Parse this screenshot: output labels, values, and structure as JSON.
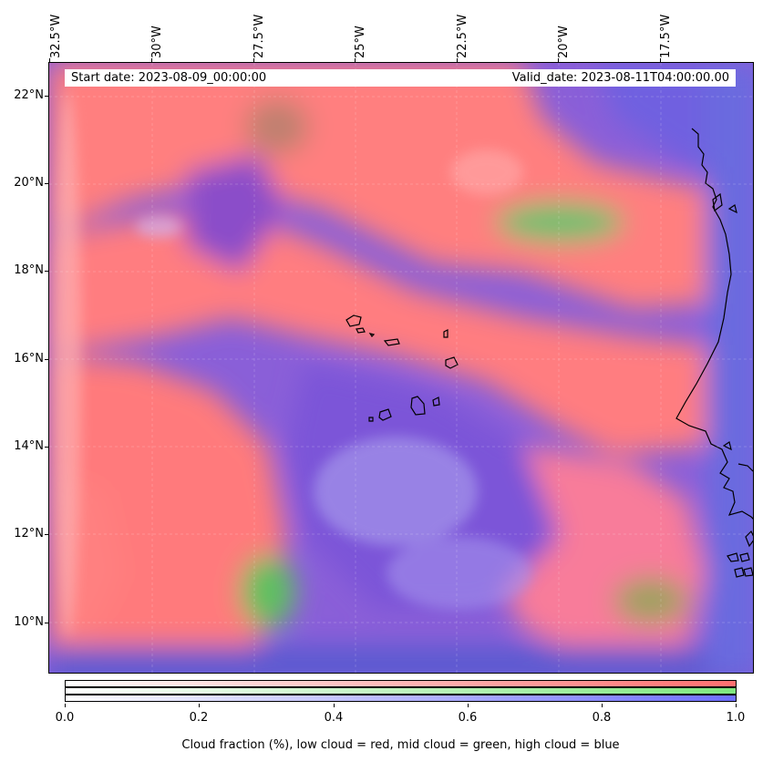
{
  "header": {
    "start_date": "Start date: 2023-08-09_00:00:00",
    "valid_date": "Valid_date: 2023-08-11T04:00:00.00"
  },
  "axes": {
    "longitude_labels": [
      "32.5°W",
      "30°W",
      "27.5°W",
      "25°W",
      "22.5°W",
      "20°W",
      "17.5°W"
    ],
    "latitude_labels": [
      "22°N",
      "20°N",
      "18°N",
      "16°N",
      "14°N",
      "12°N",
      "10°N"
    ]
  },
  "colorbar": {
    "tick_labels": [
      "0.0",
      "0.2",
      "0.4",
      "0.6",
      "0.8",
      "1.0"
    ],
    "title": "Cloud fraction (%), low cloud = red, mid cloud = green, high cloud = blue",
    "low_cloud_color": "#ff6f6f",
    "mid_cloud_color": "#7fe87f",
    "high_cloud_color": "#6f6fff"
  },
  "map": {
    "projection": "PlateCarree",
    "region": "Cape Verde and West African coast",
    "coastline_color": "#000000"
  }
}
